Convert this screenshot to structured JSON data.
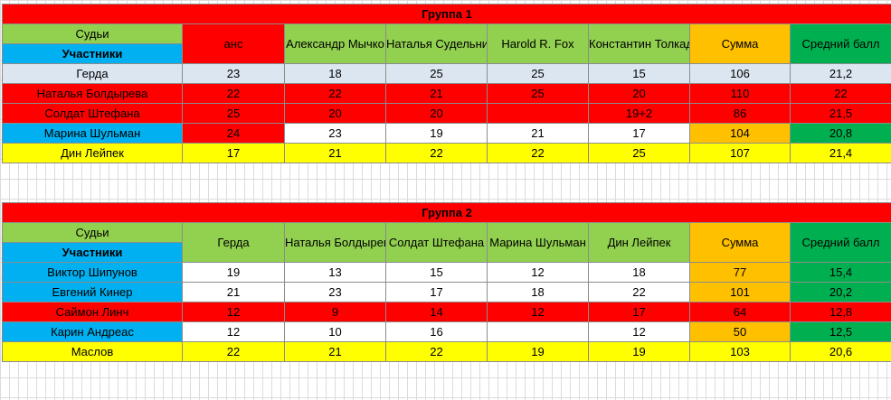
{
  "group1": {
    "title": "Группа 1",
    "judges_label": "Судьи",
    "participants_label": "Участники",
    "headers": [
      "анс",
      "Александр Мычко",
      "Наталья Судельницкая",
      "Harold R. Fox",
      "Константин Толкадов",
      "Сумма",
      "Средний балл"
    ],
    "rows": [
      {
        "name": "Герда",
        "cells": [
          "23",
          "18",
          "25",
          "25",
          "15",
          "106",
          "21,2"
        ]
      },
      {
        "name": "Наталья Болдырева",
        "cells": [
          "22",
          "22",
          "21",
          "25",
          "20",
          "110",
          "22"
        ]
      },
      {
        "name": "Солдат Штефана",
        "cells": [
          "25",
          "20",
          "20",
          "",
          "19+2",
          "86",
          "21,5"
        ]
      },
      {
        "name": "Марина Шульман",
        "cells": [
          "24",
          "23",
          "19",
          "21",
          "17",
          "104",
          "20,8"
        ]
      },
      {
        "name": "Дин Лейпек",
        "cells": [
          "17",
          "21",
          "22",
          "22",
          "25",
          "107",
          "21,4"
        ]
      }
    ]
  },
  "group2": {
    "title": "Группа 2",
    "judges_label": "Судьи",
    "participants_label": "Участники",
    "headers": [
      "Герда",
      "Наталья Болдырева",
      "Солдат Штефана",
      "Марина Шульман",
      "Дин Лейпек",
      "Сумма",
      "Средний балл"
    ],
    "rows": [
      {
        "name": "Виктор Шипунов",
        "cells": [
          "19",
          "13",
          "15",
          "12",
          "18",
          "77",
          "15,4"
        ]
      },
      {
        "name": "Евгений Кинер",
        "cells": [
          "21",
          "23",
          "17",
          "18",
          "22",
          "101",
          "20,2"
        ]
      },
      {
        "name": "Саймон Линч",
        "cells": [
          "12",
          "9",
          "14",
          "12",
          "17",
          "64",
          "12,8"
        ]
      },
      {
        "name": "Карин Андреас",
        "cells": [
          "12",
          "10",
          "16",
          "",
          "12",
          "50",
          "12,5"
        ]
      },
      {
        "name": "Маслов",
        "cells": [
          "22",
          "21",
          "22",
          "19",
          "19",
          "103",
          "20,6"
        ]
      }
    ]
  },
  "colors": {
    "red": "#ff0000",
    "light_green": "#92d050",
    "dark_green": "#00b050",
    "orange": "#ffc000",
    "blue": "#00b0f0",
    "yellow": "#ffff00",
    "light_gray_blue": "#dce6f1",
    "white": "#ffffff"
  }
}
